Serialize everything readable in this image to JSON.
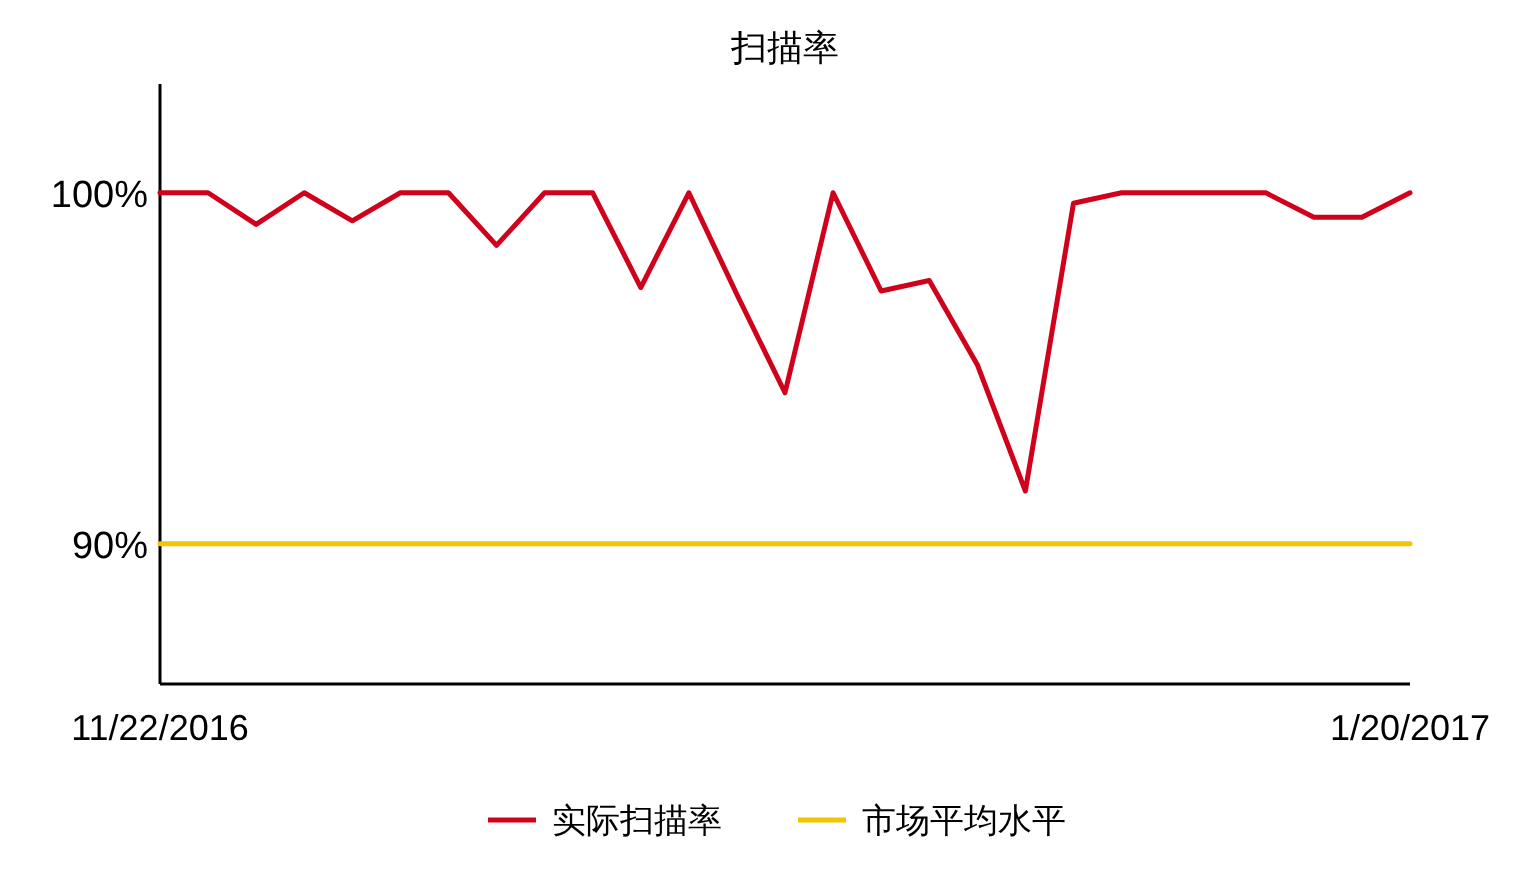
{
  "chart_data": {
    "type": "line",
    "title": "扫描率",
    "categories": [
      "11/22/2016",
      null,
      null,
      null,
      null,
      null,
      null,
      null,
      null,
      null,
      null,
      null,
      null,
      null,
      null,
      null,
      null,
      null,
      null,
      null,
      null,
      null,
      null,
      null,
      null,
      null,
      "1/20/2017"
    ],
    "series": [
      {
        "name": "实际扫描率",
        "color": "#d0021b",
        "values": [
          100,
          100,
          99.1,
          100,
          99.2,
          100,
          100,
          98.5,
          100,
          100,
          97.3,
          100,
          97.1,
          94.3,
          100,
          97.2,
          97.5,
          95.1,
          91.5,
          99.7,
          100,
          100,
          100,
          100,
          99.3,
          99.3,
          100
        ]
      },
      {
        "name": "市场平均水平",
        "color": "#f5c400",
        "values": [
          90,
          90,
          90,
          90,
          90,
          90,
          90,
          90,
          90,
          90,
          90,
          90,
          90,
          90,
          90,
          90,
          90,
          90,
          90,
          90,
          90,
          90,
          90,
          90,
          90,
          90,
          90
        ]
      }
    ],
    "ylim": [
      86,
      103.1
    ],
    "yticks": [
      {
        "value": 90,
        "label": "90%"
      },
      {
        "value": 100,
        "label": "100%"
      }
    ],
    "legend": "bottom",
    "marker": "none",
    "line_style": "solid"
  }
}
